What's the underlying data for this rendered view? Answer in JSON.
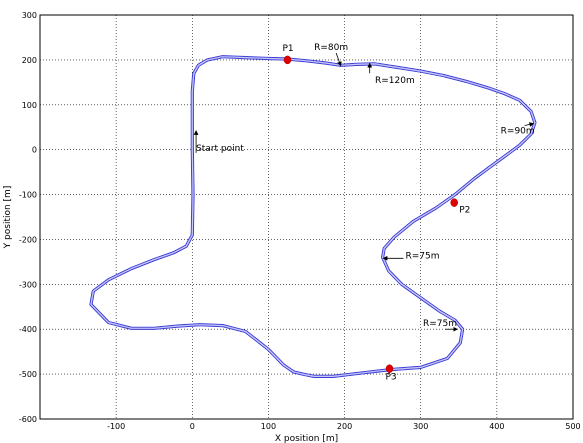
{
  "chart_data": {
    "type": "line",
    "title": "",
    "xlabel": "X position [m]",
    "ylabel": "Y position [m]",
    "xlim": [
      -200,
      500
    ],
    "ylim": [
      -600,
      300
    ],
    "xticks": [
      -100,
      0,
      100,
      200,
      300,
      400,
      500
    ],
    "yticks": [
      -600,
      -500,
      -400,
      -300,
      -200,
      -100,
      0,
      100,
      200,
      300
    ],
    "grid": true,
    "series": [
      {
        "name": "",
        "color": "#3b3bd6",
        "x": [
          0,
          0,
          2,
          8,
          20,
          40,
          70,
          100,
          125,
          150,
          175,
          195,
          215,
          240,
          270,
          300,
          330,
          360,
          390,
          410,
          430,
          445,
          450,
          445,
          430,
          410,
          390,
          370,
          345,
          320,
          290,
          265,
          252,
          250,
          258,
          275,
          300,
          325,
          345,
          355,
          352,
          335,
          300,
          260,
          220,
          185,
          160,
          145,
          133,
          120,
          100,
          70,
          40,
          10,
          -20,
          -50,
          -80,
          -110,
          -133,
          -130,
          -110,
          -80,
          -50,
          -25,
          -8,
          0,
          1,
          0
        ],
        "y": [
          0,
          130,
          170,
          188,
          200,
          207,
          205,
          203,
          202,
          198,
          193,
          188,
          190,
          191,
          183,
          175,
          165,
          152,
          137,
          125,
          110,
          85,
          60,
          35,
          10,
          -15,
          -40,
          -65,
          -100,
          -130,
          -160,
          -195,
          -220,
          -240,
          -270,
          -300,
          -330,
          -360,
          -380,
          -400,
          -430,
          -465,
          -485,
          -490,
          -498,
          -505,
          -505,
          -500,
          -495,
          -480,
          -445,
          -405,
          -392,
          -390,
          -393,
          -398,
          -398,
          -385,
          -345,
          -315,
          -290,
          -265,
          -245,
          -230,
          -215,
          -190,
          -100,
          0
        ]
      }
    ],
    "points": [
      {
        "label": "P1",
        "x": 125,
        "y": 200,
        "color": "#e00000"
      },
      {
        "label": "P2",
        "x": 344,
        "y": -118,
        "color": "#e00000"
      },
      {
        "label": "P3",
        "x": 259,
        "y": -488,
        "color": "#e00000"
      }
    ],
    "annotations": [
      {
        "text": "R=80m",
        "x": 195,
        "y": 187,
        "tx": 160,
        "ty": 222,
        "anchor": "start"
      },
      {
        "text": "R=120m",
        "x": 233,
        "y": 192,
        "tx": 240,
        "ty": 148,
        "anchor": "end"
      },
      {
        "text": "R=90m",
        "x": 448,
        "y": 58,
        "tx": 405,
        "ty": 36,
        "anchor": "start"
      },
      {
        "text": "R=75m",
        "x": 251,
        "y": -242,
        "tx": 280,
        "ty": -242,
        "anchor": "start"
      },
      {
        "text": "R=75m",
        "x": 348,
        "y": -400,
        "tx": 303,
        "ty": -393,
        "anchor": "start"
      },
      {
        "text": "Start point",
        "x": 5,
        "y": 42,
        "tx": 5,
        "ty": -3,
        "anchor": "start"
      }
    ]
  }
}
